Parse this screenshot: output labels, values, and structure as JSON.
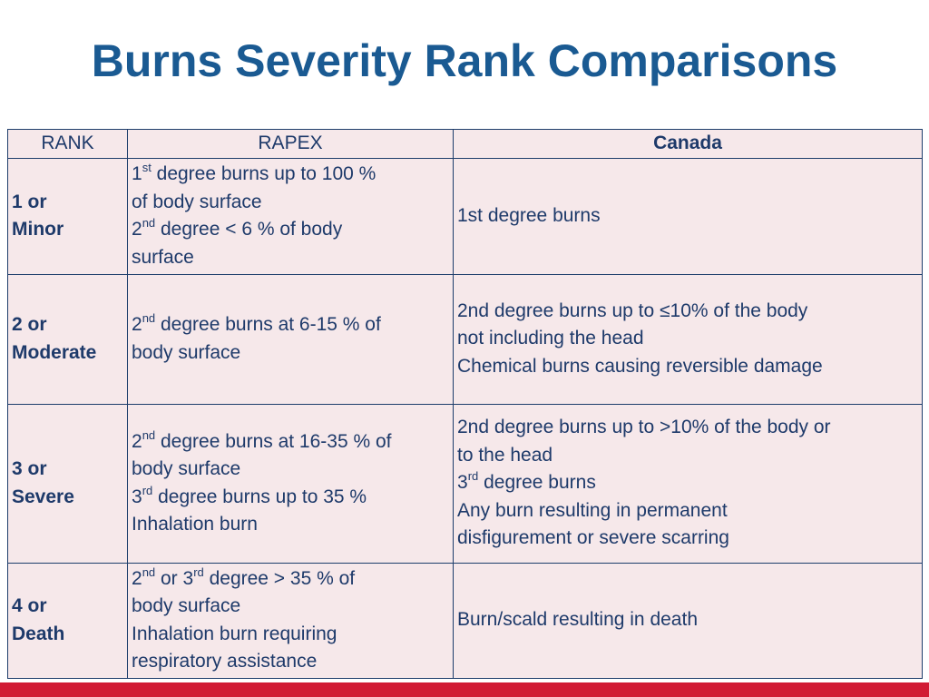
{
  "title": "Burns Severity Rank Comparisons",
  "colors": {
    "title": "#1a5a92",
    "table_bg": "#f6e8ea",
    "border": "#1d3d6b",
    "bottom_bar": "#d11b34"
  },
  "table": {
    "headers": [
      "RANK",
      "RAPEX",
      "Canada"
    ],
    "rows": [
      {
        "rank": [
          "1 or",
          "Minor"
        ],
        "rapex": [
          [
            {
              "t": "1"
            },
            {
              "s": "st"
            },
            {
              "t": " degree burns up to 100 %"
            }
          ],
          [
            {
              "t": "of body surface"
            }
          ],
          [
            {
              "t": "2"
            },
            {
              "s": "nd"
            },
            {
              "t": " degree < 6 % of body"
            }
          ],
          [
            {
              "t": "surface"
            }
          ]
        ],
        "canada": [
          [
            {
              "t": "1st degree burns"
            }
          ]
        ]
      },
      {
        "rank": [
          "2 or",
          "Moderate"
        ],
        "rapex": [
          [
            {
              "t": "2"
            },
            {
              "s": "nd"
            },
            {
              "t": " degree burns at 6-15 % of"
            }
          ],
          [
            {
              "t": "body surface"
            }
          ]
        ],
        "canada": [
          [
            {
              "t": "2nd degree burns up to ≤10% of the body"
            }
          ],
          [
            {
              "t": "not including the head"
            }
          ],
          [
            {
              "t": "Chemical burns causing reversible damage"
            }
          ]
        ]
      },
      {
        "rank": [
          "3 or",
          "Severe"
        ],
        "rapex": [
          [
            {
              "t": "2"
            },
            {
              "s": "nd"
            },
            {
              "t": " degree burns at 16-35 % of"
            }
          ],
          [
            {
              "t": "body surface"
            }
          ],
          [
            {
              "t": "3"
            },
            {
              "s": "rd"
            },
            {
              "t": " degree burns up to 35 %"
            }
          ],
          [
            {
              "t": "Inhalation burn"
            }
          ]
        ],
        "canada": [
          [
            {
              "t": "2nd degree burns up to >10% of the body or"
            }
          ],
          [
            {
              "t": "to the head"
            }
          ],
          [
            {
              "t": "3"
            },
            {
              "s": "rd"
            },
            {
              "t": " degree burns"
            }
          ],
          [
            {
              "t": "Any burn resulting in permanent"
            }
          ],
          [
            {
              "t": "disfigurement or severe scarring"
            }
          ]
        ]
      },
      {
        "rank": [
          "4 or",
          "Death"
        ],
        "rapex": [
          [
            {
              "t": "2"
            },
            {
              "s": "nd"
            },
            {
              "t": " or 3"
            },
            {
              "s": "rd"
            },
            {
              "t": " degree > 35 % of"
            }
          ],
          [
            {
              "t": "body surface"
            }
          ],
          [
            {
              "t": "Inhalation burn requiring"
            }
          ],
          [
            {
              "t": "respiratory assistance"
            }
          ]
        ],
        "canada": [
          [
            {
              "t": "Burn/scald resulting in death"
            }
          ]
        ]
      }
    ]
  }
}
